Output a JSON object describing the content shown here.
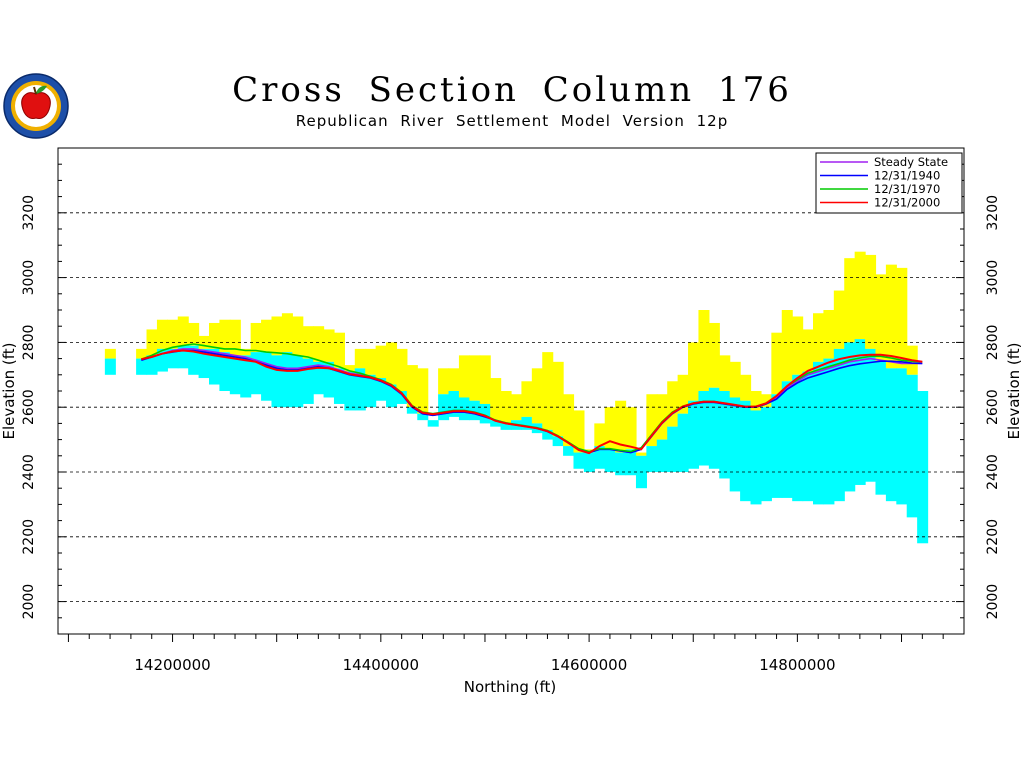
{
  "header": {
    "title": "Cross Section Column 176",
    "subtitle": "Republican River Settlement Model Version 12p"
  },
  "logo": {
    "icon": "apple-seal-icon",
    "colors": {
      "ring": "#1d4fa8",
      "apple": "#e01010",
      "leaf": "#2a9a2a",
      "gold": "#f0b000"
    }
  },
  "colors": {
    "saturated": "#00ffff",
    "unsaturated": "#ffff00",
    "grid": "#000000"
  },
  "chart_data": {
    "type": "area",
    "xlabel": "Northing (ft)",
    "ylabel_left": "Elevation (ft)",
    "ylabel_right": "Elevation (ft)",
    "xlim": [
      14090000,
      14960000
    ],
    "ylim": [
      1900,
      3400
    ],
    "x_ticks": [
      14200000,
      14400000,
      14600000,
      14800000
    ],
    "y_ticks": [
      2000,
      2200,
      2400,
      2600,
      2800,
      3000,
      3200
    ],
    "grid": "horizontal dashed",
    "legend_position": "top-right",
    "legend": [
      {
        "label": "Steady State",
        "color": "#a020f0"
      },
      {
        "label": "12/31/1940",
        "color": "#0000ff"
      },
      {
        "label": "12/31/1970",
        "color": "#00cc00"
      },
      {
        "label": "12/31/2000",
        "color": "#ff0000"
      }
    ],
    "x": [
      14140000,
      14150000,
      14160000,
      14170000,
      14180000,
      14190000,
      14200000,
      14210000,
      14220000,
      14230000,
      14240000,
      14250000,
      14260000,
      14270000,
      14280000,
      14290000,
      14300000,
      14310000,
      14320000,
      14330000,
      14340000,
      14350000,
      14360000,
      14370000,
      14380000,
      14390000,
      14400000,
      14410000,
      14420000,
      14430000,
      14440000,
      14450000,
      14460000,
      14470000,
      14480000,
      14490000,
      14500000,
      14510000,
      14520000,
      14530000,
      14540000,
      14550000,
      14560000,
      14570000,
      14580000,
      14590000,
      14600000,
      14610000,
      14620000,
      14630000,
      14640000,
      14650000,
      14660000,
      14670000,
      14680000,
      14690000,
      14700000,
      14710000,
      14720000,
      14730000,
      14740000,
      14750000,
      14760000,
      14770000,
      14780000,
      14790000,
      14800000,
      14810000,
      14820000,
      14830000,
      14840000,
      14850000,
      14860000,
      14870000,
      14880000,
      14890000,
      14900000,
      14910000,
      14920000
    ],
    "land_surface": [
      2780,
      null,
      null,
      2780,
      2840,
      2870,
      2870,
      2880,
      2860,
      2820,
      2860,
      2870,
      2870,
      2780,
      2860,
      2870,
      2880,
      2890,
      2880,
      2850,
      2850,
      2840,
      2830,
      2730,
      2780,
      2780,
      2790,
      2800,
      2780,
      2730,
      2720,
      2560,
      2720,
      2720,
      2760,
      2760,
      2760,
      2690,
      2650,
      2640,
      2680,
      2720,
      2770,
      2740,
      2640,
      2590,
      2470,
      2550,
      2600,
      2620,
      2600,
      2460,
      2640,
      2640,
      2680,
      2700,
      2800,
      2900,
      2860,
      2760,
      2740,
      2700,
      2650,
      2640,
      2830,
      2900,
      2880,
      2840,
      2890,
      2900,
      2960,
      3060,
      3080,
      3070,
      3010,
      3040,
      3030,
      2790,
      2500
    ],
    "aquifer_top": [
      2750,
      null,
      null,
      2750,
      2760,
      2780,
      2780,
      2790,
      2790,
      2780,
      2780,
      2770,
      2760,
      2760,
      2770,
      2770,
      2760,
      2770,
      2760,
      2750,
      2740,
      2740,
      2720,
      2710,
      2720,
      2700,
      2690,
      2670,
      2650,
      2600,
      2580,
      2560,
      2640,
      2650,
      2630,
      2620,
      2610,
      2560,
      2550,
      2560,
      2570,
      2550,
      2530,
      2510,
      2480,
      2460,
      2460,
      2480,
      2470,
      2460,
      2470,
      2450,
      2480,
      2500,
      2540,
      2580,
      2620,
      2650,
      2660,
      2650,
      2630,
      2620,
      2590,
      2600,
      2640,
      2680,
      2700,
      2710,
      2740,
      2750,
      2780,
      2800,
      2810,
      2780,
      2740,
      2720,
      2720,
      2700,
      2650
    ],
    "aquifer_base": [
      2700,
      null,
      null,
      2700,
      2700,
      2710,
      2720,
      2720,
      2700,
      2690,
      2670,
      2650,
      2640,
      2630,
      2640,
      2620,
      2600,
      2600,
      2600,
      2610,
      2640,
      2630,
      2610,
      2590,
      2590,
      2600,
      2620,
      2600,
      2610,
      2580,
      2560,
      2540,
      2560,
      2570,
      2560,
      2560,
      2550,
      2540,
      2530,
      2530,
      2530,
      2520,
      2500,
      2480,
      2450,
      2410,
      2400,
      2410,
      2400,
      2390,
      2390,
      2350,
      2400,
      2400,
      2400,
      2400,
      2410,
      2420,
      2410,
      2380,
      2340,
      2310,
      2300,
      2310,
      2320,
      2320,
      2310,
      2310,
      2300,
      2300,
      2310,
      2340,
      2360,
      2370,
      2330,
      2310,
      2300,
      2260,
      2180
    ],
    "series": [
      {
        "name": "Steady State",
        "values": [
          2720,
          null,
          null,
          2745,
          2755,
          2765,
          2775,
          2780,
          2780,
          2775,
          2770,
          2765,
          2760,
          2755,
          2745,
          2735,
          2725,
          2720,
          2720,
          2725,
          2730,
          2725,
          2715,
          2705,
          2700,
          2690,
          2680,
          2665,
          2640,
          2600,
          2580,
          2575,
          2580,
          2585,
          2585,
          2580,
          2570,
          2560,
          2550,
          2545,
          2540,
          2535,
          2525,
          2510,
          2490,
          2470,
          2460,
          2470,
          2470,
          2465,
          2460,
          2470,
          2510,
          2550,
          2580,
          2600,
          2610,
          2615,
          2615,
          2610,
          2605,
          2600,
          2600,
          2610,
          2630,
          2660,
          2680,
          2700,
          2710,
          2720,
          2730,
          2740,
          2745,
          2750,
          2745,
          2740,
          2735,
          2735,
          2735
        ]
      },
      {
        "name": "12/31/1940",
        "values": [
          2720,
          null,
          null,
          2745,
          2755,
          2765,
          2770,
          2775,
          2775,
          2770,
          2765,
          2760,
          2755,
          2750,
          2740,
          2730,
          2720,
          2715,
          2715,
          2720,
          2725,
          2720,
          2710,
          2700,
          2695,
          2690,
          2680,
          2665,
          2640,
          2600,
          2580,
          2575,
          2580,
          2585,
          2585,
          2580,
          2570,
          2560,
          2550,
          2545,
          2540,
          2535,
          2525,
          2510,
          2490,
          2470,
          2460,
          2470,
          2470,
          2465,
          2460,
          2470,
          2510,
          2550,
          2580,
          2600,
          2610,
          2615,
          2615,
          2610,
          2605,
          2600,
          2600,
          2610,
          2625,
          2655,
          2675,
          2690,
          2700,
          2710,
          2720,
          2728,
          2734,
          2738,
          2742,
          2742,
          2740,
          2736,
          2735
        ]
      },
      {
        "name": "12/31/1970",
        "values": [
          2725,
          null,
          null,
          2748,
          2760,
          2775,
          2785,
          2790,
          2795,
          2790,
          2785,
          2780,
          2780,
          2775,
          2775,
          2770,
          2768,
          2765,
          2760,
          2755,
          2745,
          2735,
          2725,
          2712,
          2705,
          2695,
          2685,
          2670,
          2645,
          2605,
          2585,
          2580,
          2585,
          2590,
          2590,
          2585,
          2575,
          2560,
          2552,
          2547,
          2542,
          2537,
          2528,
          2512,
          2492,
          2472,
          2463,
          2472,
          2472,
          2467,
          2463,
          2475,
          2515,
          2555,
          2585,
          2603,
          2613,
          2618,
          2618,
          2612,
          2607,
          2602,
          2602,
          2612,
          2635,
          2665,
          2685,
          2705,
          2715,
          2725,
          2735,
          2745,
          2752,
          2757,
          2757,
          2752,
          2745,
          2742,
          2740
        ]
      },
      {
        "name": "12/31/2000",
        "values": [
          2725,
          null,
          null,
          2748,
          2755,
          2765,
          2772,
          2775,
          2772,
          2765,
          2760,
          2755,
          2750,
          2745,
          2740,
          2725,
          2715,
          2712,
          2712,
          2718,
          2722,
          2720,
          2712,
          2702,
          2697,
          2692,
          2682,
          2668,
          2643,
          2603,
          2583,
          2578,
          2583,
          2588,
          2588,
          2583,
          2573,
          2558,
          2550,
          2545,
          2540,
          2535,
          2526,
          2510,
          2490,
          2468,
          2458,
          2480,
          2495,
          2485,
          2478,
          2470,
          2512,
          2552,
          2582,
          2602,
          2612,
          2617,
          2617,
          2612,
          2607,
          2602,
          2602,
          2612,
          2635,
          2665,
          2690,
          2712,
          2725,
          2738,
          2748,
          2755,
          2760,
          2762,
          2762,
          2758,
          2752,
          2745,
          2740
        ]
      }
    ]
  }
}
